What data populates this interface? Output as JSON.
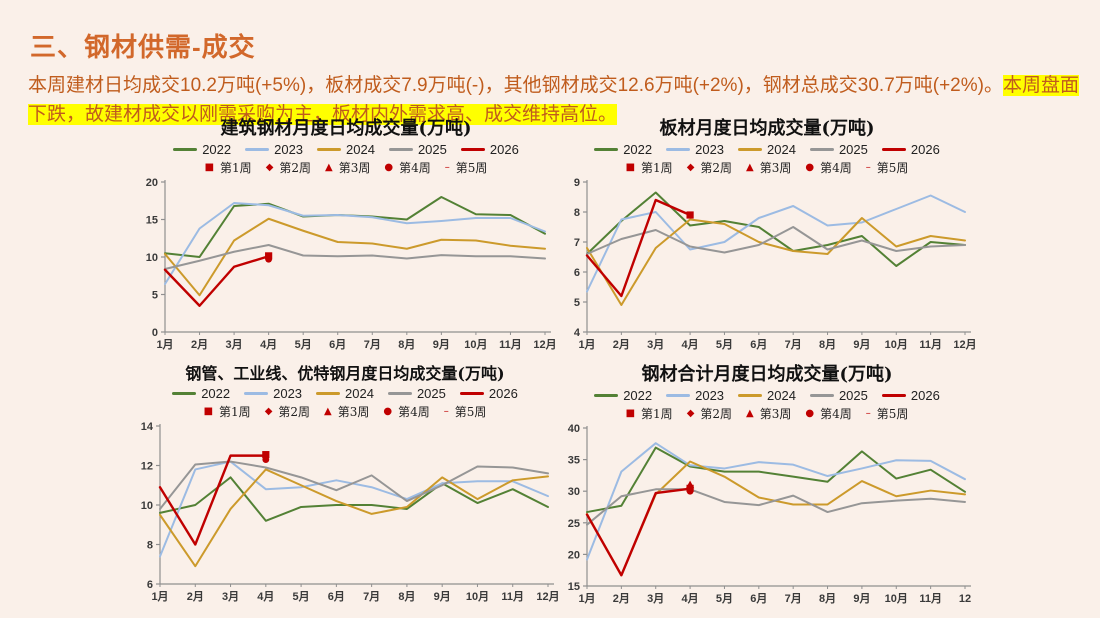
{
  "page": {
    "background": "#FAF0E9"
  },
  "header": {
    "title": "三、钢材供需-成交",
    "color": "#D2682B"
  },
  "summary": {
    "segments": [
      {
        "text": "本周建材日均成交10.2万吨(+5%)，板材成交7.9万吨(-)，其他钢材成交12.6万吨(+2%)，钢材总成交30.7万吨(+2%)。",
        "highlight": false
      },
      {
        "text": "本周盘面下跌，故建材成交以刚需采购为主，板材内外需求高、成交维持高位。",
        "highlight": true
      }
    ],
    "text_color": "#C05C1D",
    "highlight_color": "#FFFF00"
  },
  "legend": {
    "years": [
      {
        "label": "2022",
        "color": "#538135"
      },
      {
        "label": "2023",
        "color": "#9CBBE3"
      },
      {
        "label": "2024",
        "color": "#CC9A2B"
      },
      {
        "label": "2025",
        "color": "#969696"
      },
      {
        "label": "2026",
        "color": "#C00000"
      }
    ],
    "weeks": [
      {
        "label": "第1周",
        "shape": "square",
        "glyph": "■"
      },
      {
        "label": "第2周",
        "shape": "diamond",
        "glyph": "◆"
      },
      {
        "label": "第3周",
        "shape": "triangle",
        "glyph": "▲"
      },
      {
        "label": "第4周",
        "shape": "circle",
        "glyph": "●"
      },
      {
        "label": "第5周",
        "shape": "dash",
        "glyph": "–"
      }
    ],
    "week_color": "#C00000",
    "position": "top"
  },
  "chart_data": [
    {
      "type": "line",
      "title": "建筑钢材月度日均成交量(万吨)",
      "xlabel": "",
      "ylabel": "",
      "grid": false,
      "ylim": [
        0,
        20
      ],
      "yticks": [
        0,
        5,
        10,
        15,
        20
      ],
      "x_labels": [
        "1月",
        "2月",
        "3月",
        "4月",
        "5月",
        "6月",
        "7月",
        "8月",
        "9月",
        "10月",
        "11月",
        "12月"
      ],
      "series": [
        {
          "name": "2022",
          "values": [
            10.5,
            10.0,
            16.8,
            17.1,
            15.4,
            15.6,
            15.4,
            15.0,
            18.0,
            15.7,
            15.6,
            13.1
          ]
        },
        {
          "name": "2023",
          "values": [
            6.4,
            13.8,
            17.2,
            16.9,
            15.5,
            15.6,
            15.3,
            14.5,
            14.8,
            15.2,
            15.2,
            13.4
          ]
        },
        {
          "name": "2024",
          "values": [
            10.4,
            4.9,
            12.2,
            15.1,
            13.5,
            12.0,
            11.8,
            11.1,
            12.3,
            12.2,
            11.5,
            11.1
          ]
        },
        {
          "name": "2025",
          "values": [
            8.4,
            9.5,
            10.7,
            11.6,
            10.2,
            10.1,
            10.2,
            9.8,
            10.25,
            10.1,
            10.1,
            9.8
          ]
        },
        {
          "name": "2026",
          "values": [
            8.3,
            3.5,
            8.7,
            10.1
          ]
        }
      ],
      "week_markers": [
        {
          "shape": "square",
          "month": "4月",
          "value": 10.15
        },
        {
          "shape": "circle",
          "month": "4月",
          "value": 9.7
        }
      ]
    },
    {
      "type": "line",
      "title": "板材月度日均成交量(万吨)",
      "xlabel": "",
      "ylabel": "",
      "grid": false,
      "ylim": [
        4,
        9
      ],
      "yticks": [
        4,
        5,
        6,
        7,
        8,
        9
      ],
      "x_labels": [
        "1月",
        "2月",
        "3月",
        "4月",
        "5月",
        "6月",
        "7月",
        "8月",
        "9月",
        "10月",
        "11月",
        "12月"
      ],
      "series": [
        {
          "name": "2022",
          "values": [
            6.6,
            7.7,
            8.65,
            7.55,
            7.7,
            7.5,
            6.7,
            6.9,
            7.2,
            6.2,
            7.0,
            6.9
          ]
        },
        {
          "name": "2023",
          "values": [
            5.35,
            7.75,
            8.0,
            6.75,
            7.0,
            7.8,
            8.2,
            7.55,
            7.65,
            8.1,
            8.55,
            8.0
          ]
        },
        {
          "name": "2024",
          "values": [
            6.8,
            4.9,
            6.8,
            7.75,
            7.6,
            7.0,
            6.7,
            6.6,
            7.8,
            6.85,
            7.2,
            7.05
          ]
        },
        {
          "name": "2025",
          "values": [
            6.6,
            7.1,
            7.4,
            6.85,
            6.65,
            6.9,
            7.5,
            6.75,
            7.05,
            6.7,
            6.85,
            6.9
          ]
        },
        {
          "name": "2026",
          "values": [
            6.55,
            5.2,
            8.4,
            7.9
          ]
        }
      ],
      "week_markers": [
        {
          "shape": "square",
          "month": "4月",
          "value": 7.9
        }
      ]
    },
    {
      "type": "line",
      "title": "钢管、工业线、优特钢月度日均成交量(万吨)",
      "xlabel": "",
      "ylabel": "",
      "grid": false,
      "ylim": [
        6,
        14
      ],
      "yticks": [
        6,
        8,
        10,
        12,
        14
      ],
      "x_labels": [
        "1月",
        "2月",
        "3月",
        "4月",
        "5月",
        "6月",
        "7月",
        "8月",
        "9月",
        "10月",
        "11月",
        "12月"
      ],
      "series": [
        {
          "name": "2022",
          "values": [
            9.6,
            10.0,
            11.4,
            9.2,
            9.9,
            10.0,
            10.0,
            9.8,
            11.1,
            10.1,
            10.8,
            9.9
          ]
        },
        {
          "name": "2023",
          "values": [
            7.4,
            11.8,
            12.2,
            10.8,
            10.9,
            11.25,
            10.9,
            10.3,
            11.1,
            11.2,
            11.2,
            10.45
          ]
        },
        {
          "name": "2024",
          "values": [
            9.5,
            6.9,
            9.8,
            11.8,
            11.0,
            10.2,
            9.55,
            9.9,
            11.4,
            10.3,
            11.25,
            11.45
          ]
        },
        {
          "name": "2025",
          "values": [
            9.8,
            12.05,
            12.2,
            11.9,
            11.4,
            10.75,
            11.5,
            10.2,
            11.0,
            11.95,
            11.9,
            11.6
          ]
        },
        {
          "name": "2026",
          "values": [
            10.9,
            8.0,
            12.5,
            12.5
          ]
        }
      ],
      "week_markers": [
        {
          "shape": "square",
          "month": "4月",
          "value": 12.55
        },
        {
          "shape": "circle",
          "month": "4月",
          "value": 12.3
        }
      ]
    },
    {
      "type": "line",
      "title": "钢材合计月度日均成交量(万吨)",
      "xlabel": "",
      "ylabel": "",
      "grid": false,
      "ylim": [
        15,
        40
      ],
      "yticks": [
        15,
        20,
        25,
        30,
        35,
        40
      ],
      "x_labels": [
        "1月",
        "2月",
        "3月",
        "4月",
        "5月",
        "6月",
        "7月",
        "8月",
        "9月",
        "10月",
        "11月",
        "12"
      ],
      "series": [
        {
          "name": "2022",
          "values": [
            26.7,
            27.7,
            36.9,
            33.9,
            33.1,
            33.1,
            32.3,
            31.5,
            36.3,
            32.0,
            33.4,
            29.9
          ]
        },
        {
          "name": "2023",
          "values": [
            19.2,
            33.1,
            37.6,
            34.1,
            33.6,
            34.6,
            34.2,
            32.4,
            33.6,
            34.9,
            34.8,
            31.9
          ]
        },
        {
          "name": "2024",
          "values": [
            26.4,
            16.7,
            29.5,
            34.7,
            32.3,
            29.0,
            27.9,
            27.9,
            31.6,
            29.2,
            30.1,
            29.5
          ]
        },
        {
          "name": "2025",
          "values": [
            24.7,
            29.2,
            30.3,
            30.3,
            28.3,
            27.8,
            29.3,
            26.7,
            28.1,
            28.5,
            28.8,
            28.3
          ]
        },
        {
          "name": "2026",
          "values": [
            26.3,
            16.7,
            29.7,
            30.4
          ]
        }
      ],
      "week_markers": [
        {
          "shape": "triangle",
          "month": "4月",
          "value": 31.0
        },
        {
          "shape": "square",
          "month": "4月",
          "value": 30.45
        },
        {
          "shape": "circle",
          "month": "4月",
          "value": 30.0
        }
      ]
    }
  ]
}
